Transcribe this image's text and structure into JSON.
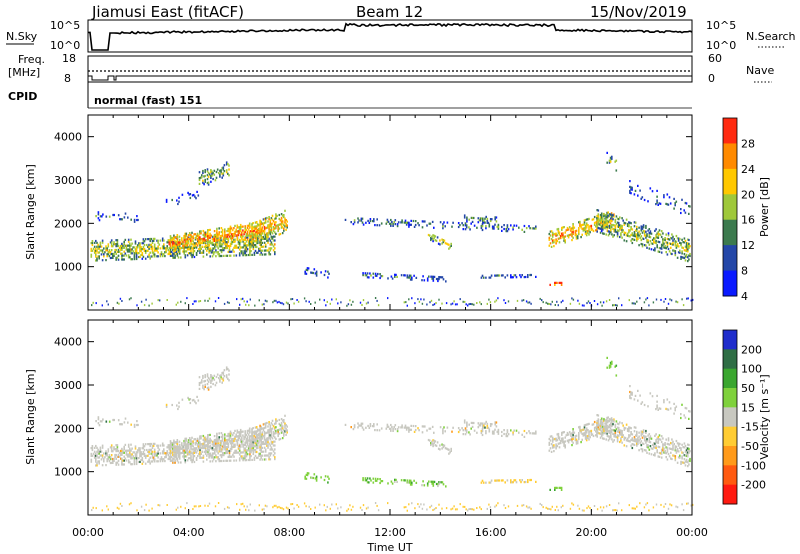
{
  "header": {
    "station": "Jiamusi East (fitACF)",
    "beam": "Beam 12",
    "date": "15/Nov/2019"
  },
  "top_panels": {
    "nsky_label": "N.Sky",
    "nsearch_label": "N.Search",
    "noise_ticks": [
      "10^5",
      "10^0"
    ],
    "freq_label_1": "Freq.",
    "freq_label_2": "[MHz]",
    "freq_ticks": [
      "18",
      "8"
    ],
    "nave_label": "Nave",
    "nave_ticks": [
      "60",
      "0"
    ],
    "cpid_label": "CPID",
    "cpid_value": "normal (fast) 151"
  },
  "chart_data": [
    {
      "type": "heatmap",
      "panel": "power",
      "ylabel": "Slant Range [km]",
      "colorbar_label": "Power [dB]",
      "colorbar_ticks": [
        "4",
        "8",
        "12",
        "16",
        "20",
        "24",
        "28"
      ],
      "colorbar_colors": [
        "#0a1aff",
        "#2447a8",
        "#3c7a4e",
        "#9fc83a",
        "#ffc800",
        "#ff8a00",
        "#ff2a10"
      ],
      "x_ticks": [
        "00:00",
        "04:00",
        "08:00",
        "12:00",
        "16:00",
        "20:00",
        "00:00"
      ],
      "y_ticks": [
        "1000",
        "2000",
        "3000",
        "4000"
      ],
      "ylim": [
        0,
        4500
      ],
      "xlim_hours": [
        0,
        24
      ]
    },
    {
      "type": "heatmap",
      "panel": "velocity",
      "ylabel": "Slant Range [km]",
      "colorbar_label": "Velocity [m s⁻¹]",
      "colorbar_ticks": [
        "200",
        "100",
        "50",
        "15",
        "-15",
        "-50",
        "-100",
        "-200"
      ],
      "colorbar_colors": [
        "#1f2dcc",
        "#2f6e45",
        "#3aa62f",
        "#7fd13c",
        "#c8c8c0",
        "#ffcc33",
        "#ff9a1a",
        "#ff5a10",
        "#ff1a10"
      ],
      "x_ticks": [
        "00:00",
        "04:00",
        "08:00",
        "12:00",
        "16:00",
        "20:00",
        "00:00"
      ],
      "y_ticks": [
        "1000",
        "2000",
        "3000",
        "4000"
      ],
      "ylim": [
        0,
        4500
      ],
      "xlim_hours": [
        0,
        24
      ],
      "xlabel": "Time UT"
    }
  ]
}
